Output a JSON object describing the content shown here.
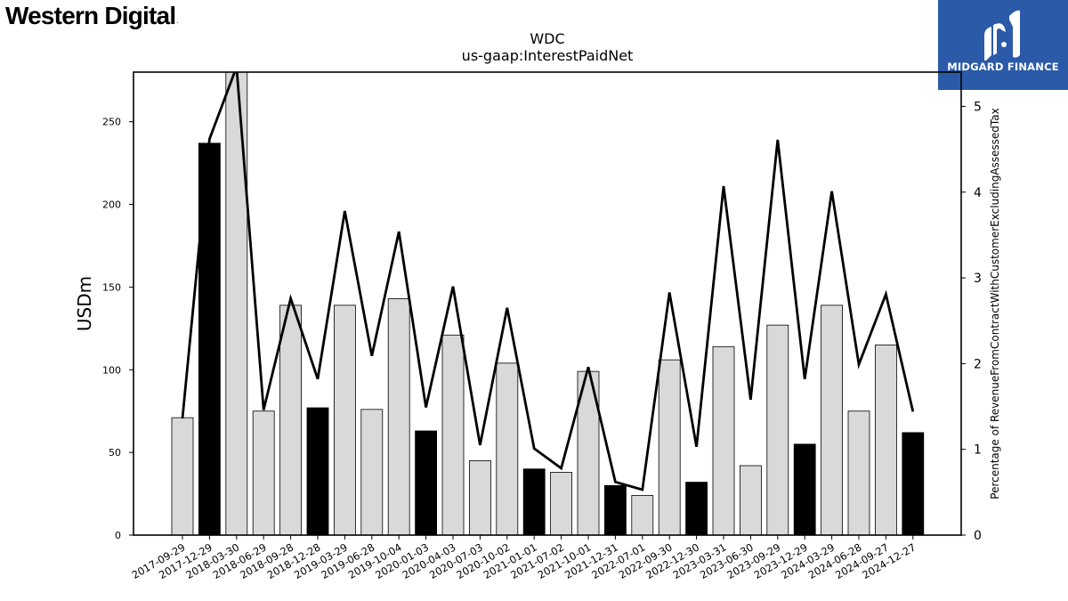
{
  "brand": {
    "company_name": "Western Digital",
    "company_registered_mark": "."
  },
  "badge": {
    "label": "MIDGARD FINANCE",
    "logo_icon": "midgard-m-logo-icon",
    "bg_color": "#2b5aa8"
  },
  "chart_data": {
    "type": "bar",
    "title": "WDC",
    "subtitle": "us-gaap:InterestPaidNet",
    "ylabel": "USDm",
    "y2label": "Percentage of RevenueFromContractWithCustomerExcludingAssessedTax",
    "ylim": [
      0,
      280
    ],
    "y2lim": [
      0,
      5.4
    ],
    "yticks": [
      0,
      50,
      100,
      150,
      200,
      250
    ],
    "y2ticks": [
      0,
      1,
      2,
      3,
      4,
      5
    ],
    "categories": [
      "2017-09-29",
      "2017-12-29",
      "2018-03-30",
      "2018-06-29",
      "2018-09-28",
      "2018-12-28",
      "2019-03-29",
      "2019-06-28",
      "2019-10-04",
      "2020-01-03",
      "2020-04-03",
      "2020-07-03",
      "2020-10-02",
      "2021-01-01",
      "2021-07-02",
      "2021-10-01",
      "2021-12-31",
      "2022-07-01",
      "2022-09-30",
      "2022-12-30",
      "2023-03-31",
      "2023-06-30",
      "2023-09-29",
      "2023-12-29",
      "2024-03-29",
      "2024-06-28",
      "2024-09-27",
      "2024-12-27"
    ],
    "series": [
      {
        "type": "bar",
        "values": [
          71,
          237,
          282,
          75,
          139,
          77,
          139,
          76,
          143,
          63,
          121,
          45,
          104,
          40,
          38,
          99,
          30,
          24,
          106,
          32,
          114,
          42,
          127,
          55,
          139,
          75,
          115,
          62
        ],
        "highlight": [
          false,
          true,
          false,
          false,
          false,
          true,
          false,
          false,
          false,
          true,
          false,
          false,
          false,
          true,
          false,
          false,
          true,
          false,
          false,
          true,
          false,
          false,
          false,
          true,
          false,
          false,
          false,
          true
        ],
        "highlight_color": "#000000",
        "color": "#d9d9d9"
      },
      {
        "type": "line",
        "axis": "right",
        "color": "#000000",
        "values": [
          1.36,
          4.62,
          5.46,
          1.46,
          2.76,
          1.82,
          3.78,
          2.09,
          3.54,
          1.49,
          2.9,
          1.05,
          2.65,
          1.01,
          0.78,
          1.96,
          0.62,
          0.53,
          2.83,
          1.03,
          4.07,
          1.58,
          4.61,
          1.82,
          4.01,
          1.99,
          2.81,
          1.44
        ]
      }
    ],
    "grid": false,
    "legend": "none"
  }
}
